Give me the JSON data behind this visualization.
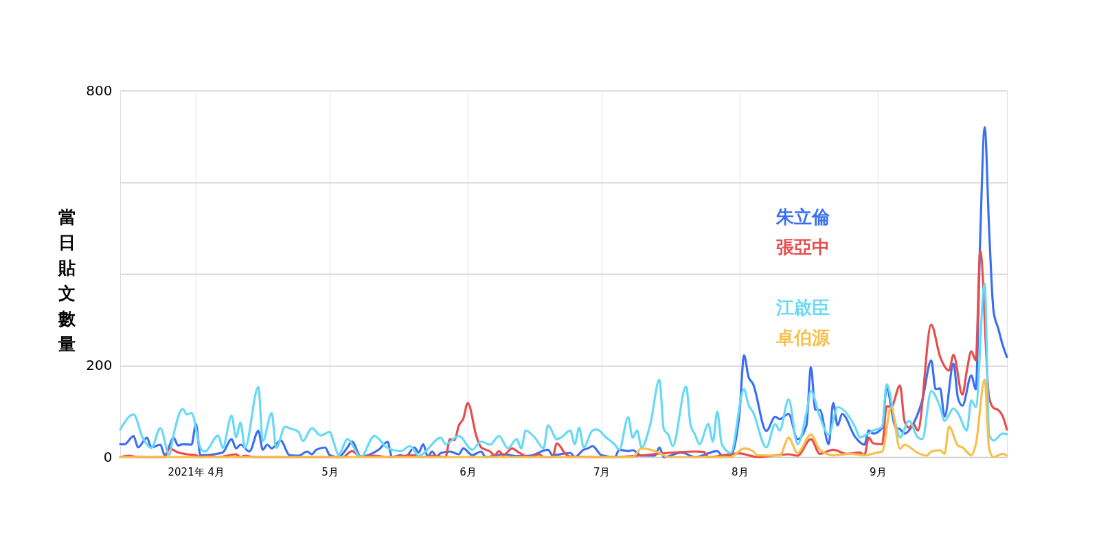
{
  "chart_data": {
    "type": "line",
    "ylabel": "當日貼文數量",
    "xlim": [
      "2021-03-15",
      "2021-09-30"
    ],
    "xticks": [
      {
        "value": "2021-04-01",
        "label": "2021年 4月"
      },
      {
        "value": "2021-05-01",
        "label": "5月"
      },
      {
        "value": "2021-06-01",
        "label": "6月"
      },
      {
        "value": "2021-07-01",
        "label": "7月"
      },
      {
        "value": "2021-08-01",
        "label": "8月"
      },
      {
        "value": "2021-09-01",
        "label": "9月"
      }
    ],
    "ylim": [
      0,
      800
    ],
    "yticks": [
      0,
      200,
      {
        "value": 400,
        "label": null
      },
      {
        "value": 600,
        "label": null
      },
      800
    ],
    "grid": true,
    "legend": "right",
    "series": [
      {
        "name": "朱立倫",
        "color": "#3b6ff2",
        "x": [
          "2021-03-15",
          "2021-03-16",
          "2021-03-18",
          "2021-03-19",
          "2021-03-21",
          "2021-03-22",
          "2021-03-24",
          "2021-03-25",
          "2021-03-27",
          "2021-03-28",
          "2021-03-29",
          "2021-03-31",
          "2021-04-01",
          "2021-04-02",
          "2021-04-05",
          "2021-04-07",
          "2021-04-09",
          "2021-04-10",
          "2021-04-11",
          "2021-04-13",
          "2021-04-15",
          "2021-04-16",
          "2021-04-17",
          "2021-04-18",
          "2021-04-20",
          "2021-04-22",
          "2021-04-24",
          "2021-04-26",
          "2021-04-27",
          "2021-04-28",
          "2021-04-30",
          "2021-05-01",
          "2021-05-03",
          "2021-05-05",
          "2021-05-06",
          "2021-05-08",
          "2021-05-12",
          "2021-05-14",
          "2021-05-15",
          "2021-05-17",
          "2021-05-18",
          "2021-05-20",
          "2021-05-21",
          "2021-05-22",
          "2021-05-23",
          "2021-05-24",
          "2021-05-25",
          "2021-05-26",
          "2021-05-28",
          "2021-05-30",
          "2021-05-31",
          "2021-06-02",
          "2021-06-04",
          "2021-06-05",
          "2021-06-09",
          "2021-06-12",
          "2021-06-15",
          "2021-06-19",
          "2021-06-20",
          "2021-06-24",
          "2021-06-25",
          "2021-06-27",
          "2021-06-28",
          "2021-06-29",
          "2021-07-01",
          "2021-07-04",
          "2021-07-05",
          "2021-07-07",
          "2021-07-08",
          "2021-07-10",
          "2021-07-13",
          "2021-07-14",
          "2021-07-15",
          "2021-07-19",
          "2021-07-22",
          "2021-07-27",
          "2021-07-28",
          "2021-07-30",
          "2021-08-01",
          "2021-08-02",
          "2021-08-03",
          "2021-08-04",
          "2021-08-07",
          "2021-08-09",
          "2021-08-10",
          "2021-08-12",
          "2021-08-14",
          "2021-08-16",
          "2021-08-17",
          "2021-08-18",
          "2021-08-19",
          "2021-08-21",
          "2021-08-22",
          "2021-08-23",
          "2021-08-24",
          "2021-08-27",
          "2021-08-29",
          "2021-08-30",
          "2021-08-31",
          "2021-09-02",
          "2021-09-03",
          "2021-09-05",
          "2021-09-06",
          "2021-09-07",
          "2021-09-09",
          "2021-09-11",
          "2021-09-13",
          "2021-09-14",
          "2021-09-15",
          "2021-09-16",
          "2021-09-18",
          "2021-09-19",
          "2021-09-20",
          "2021-09-22",
          "2021-09-23",
          "2021-09-24",
          "2021-09-25",
          "2021-09-26",
          "2021-09-27",
          "2021-09-28",
          "2021-09-29",
          "2021-09-30"
        ],
        "values": [
          28,
          28,
          46,
          21,
          42,
          21,
          27,
          4,
          42,
          25,
          28,
          27,
          72,
          4,
          6,
          10,
          39,
          19,
          27,
          12,
          57,
          16,
          27,
          19,
          36,
          4,
          3,
          12,
          6,
          16,
          21,
          4,
          0,
          21,
          34,
          1,
          16,
          33,
          0,
          4,
          0,
          21,
          10,
          28,
          1,
          12,
          1,
          9,
          12,
          6,
          19,
          4,
          12,
          0,
          6,
          2,
          3,
          16,
          4,
          9,
          0,
          16,
          19,
          24,
          4,
          0,
          16,
          13,
          15,
          3,
          3,
          21,
          0,
          10,
          0,
          13,
          4,
          4,
          99,
          222,
          175,
          160,
          57,
          88,
          83,
          94,
          39,
          69,
          196,
          103,
          103,
          28,
          118,
          69,
          94,
          43,
          27,
          58,
          51,
          64,
          151,
          64,
          61,
          51,
          73,
          124,
          211,
          148,
          150,
          88,
          204,
          129,
          112,
          178,
          148,
          480,
          720,
          496,
          318,
          282,
          246,
          218
        ]
      },
      {
        "name": "張亞中",
        "color": "#e84c4c",
        "x": [
          "2021-03-15",
          "2021-03-17",
          "2021-03-19",
          "2021-03-25",
          "2021-03-26",
          "2021-03-28",
          "2021-03-30",
          "2021-04-01",
          "2021-04-02",
          "2021-04-04",
          "2021-04-06",
          "2021-04-10",
          "2021-04-11",
          "2021-04-12",
          "2021-04-14",
          "2021-05-04",
          "2021-05-06",
          "2021-05-08",
          "2021-05-11",
          "2021-05-14",
          "2021-05-20",
          "2021-05-22",
          "2021-05-24",
          "2021-05-27",
          "2021-05-28",
          "2021-05-29",
          "2021-05-30",
          "2021-05-31",
          "2021-06-01",
          "2021-06-03",
          "2021-06-04",
          "2021-06-06",
          "2021-06-07",
          "2021-06-08",
          "2021-06-09",
          "2021-06-11",
          "2021-06-12",
          "2021-06-14",
          "2021-06-15",
          "2021-06-17",
          "2021-06-18",
          "2021-06-20",
          "2021-06-21",
          "2021-06-23",
          "2021-06-24",
          "2021-07-03",
          "2021-07-22",
          "2021-07-24",
          "2021-07-25",
          "2021-08-01",
          "2021-08-03",
          "2021-08-05",
          "2021-08-12",
          "2021-08-14",
          "2021-08-17",
          "2021-08-19",
          "2021-08-22",
          "2021-08-25",
          "2021-08-28",
          "2021-08-29",
          "2021-08-30",
          "2021-08-31",
          "2021-09-02",
          "2021-09-03",
          "2021-09-04",
          "2021-09-06",
          "2021-09-07",
          "2021-09-08",
          "2021-09-09",
          "2021-09-10",
          "2021-09-13",
          "2021-09-15",
          "2021-09-17",
          "2021-09-18",
          "2021-09-20",
          "2021-09-21",
          "2021-09-22",
          "2021-09-23",
          "2021-09-24",
          "2021-09-26",
          "2021-09-27",
          "2021-09-28",
          "2021-09-29",
          "2021-09-30"
        ],
        "values": [
          0,
          3,
          0,
          0,
          19,
          10,
          6,
          4,
          0,
          3,
          0,
          6,
          0,
          3,
          0,
          0,
          13,
          1,
          3,
          0,
          4,
          0,
          3,
          0,
          39,
          37,
          69,
          84,
          118,
          43,
          21,
          12,
          4,
          13,
          4,
          19,
          13,
          2,
          0,
          6,
          0,
          0,
          30,
          6,
          1,
          0,
          12,
          11,
          0,
          8,
          4,
          0,
          6,
          3,
          39,
          7,
          16,
          7,
          10,
          4,
          42,
          30,
          28,
          111,
          109,
          156,
          79,
          64,
          73,
          58,
          289,
          219,
          189,
          223,
          136,
          189,
          231,
          211,
          450,
          130,
          107,
          103,
          90,
          60
        ]
      },
      {
        "name": "江啟臣",
        "color": "#66d9f7",
        "x": [
          "2021-03-15",
          "2021-03-18",
          "2021-03-20",
          "2021-03-22",
          "2021-03-24",
          "2021-03-26",
          "2021-03-27",
          "2021-03-29",
          "2021-03-30",
          "2021-03-31",
          "2021-04-02",
          "2021-04-03",
          "2021-04-06",
          "2021-04-07",
          "2021-04-09",
          "2021-04-10",
          "2021-04-11",
          "2021-04-12",
          "2021-04-15",
          "2021-04-16",
          "2021-04-18",
          "2021-04-19",
          "2021-04-21",
          "2021-04-22",
          "2021-04-24",
          "2021-04-25",
          "2021-04-27",
          "2021-04-29",
          "2021-05-01",
          "2021-05-02",
          "2021-05-03",
          "2021-05-05",
          "2021-05-08",
          "2021-05-11",
          "2021-05-14",
          "2021-05-17",
          "2021-05-19",
          "2021-05-21",
          "2021-05-26",
          "2021-05-27",
          "2021-05-30",
          "2021-06-02",
          "2021-06-04",
          "2021-06-06",
          "2021-06-08",
          "2021-06-10",
          "2021-06-12",
          "2021-06-13",
          "2021-06-14",
          "2021-06-16",
          "2021-06-18",
          "2021-06-19",
          "2021-06-21",
          "2021-06-22",
          "2021-06-24",
          "2021-06-25",
          "2021-06-26",
          "2021-06-27",
          "2021-06-29",
          "2021-06-30",
          "2021-07-02",
          "2021-07-04",
          "2021-07-05",
          "2021-07-07",
          "2021-07-08",
          "2021-07-09",
          "2021-07-10",
          "2021-07-12",
          "2021-07-14",
          "2021-07-15",
          "2021-07-16",
          "2021-07-17",
          "2021-07-20",
          "2021-07-21",
          "2021-07-22",
          "2021-07-23",
          "2021-07-25",
          "2021-07-26",
          "2021-07-27",
          "2021-07-28",
          "2021-07-30",
          "2021-08-02",
          "2021-08-03",
          "2021-08-04",
          "2021-08-07",
          "2021-08-09",
          "2021-08-10",
          "2021-08-12",
          "2021-08-14",
          "2021-08-16",
          "2021-08-17",
          "2021-08-19",
          "2021-08-21",
          "2021-08-23",
          "2021-08-27",
          "2021-08-28",
          "2021-08-31",
          "2021-09-02",
          "2021-09-03",
          "2021-09-05",
          "2021-09-06",
          "2021-09-08",
          "2021-09-10",
          "2021-09-11",
          "2021-09-13",
          "2021-09-15",
          "2021-09-16",
          "2021-09-18",
          "2021-09-19",
          "2021-09-21",
          "2021-09-22",
          "2021-09-23",
          "2021-09-25",
          "2021-09-26",
          "2021-09-27",
          "2021-09-29",
          "2021-09-30"
        ],
        "values": [
          60,
          93,
          43,
          20,
          63,
          5,
          50,
          105,
          93,
          96,
          20,
          12,
          47,
          20,
          90,
          43,
          75,
          20,
          153,
          35,
          96,
          20,
          66,
          63,
          55,
          35,
          63,
          47,
          55,
          30,
          5,
          39,
          0,
          46,
          20,
          13,
          24,
          3,
          42,
          28,
          46,
          16,
          34,
          27,
          46,
          19,
          39,
          19,
          58,
          43,
          19,
          69,
          39,
          43,
          58,
          28,
          64,
          21,
          58,
          60,
          43,
          27,
          16,
          87,
          42,
          58,
          21,
          73,
          169,
          60,
          49,
          24,
          154,
          70,
          49,
          28,
          72,
          34,
          99,
          28,
          9,
          148,
          114,
          98,
          21,
          72,
          58,
          126,
          28,
          96,
          144,
          88,
          49,
          109,
          64,
          43,
          58,
          66,
          159,
          73,
          43,
          79,
          43,
          39,
          144,
          109,
          79,
          106,
          96,
          58,
          124,
          109,
          379,
          49,
          36,
          51,
          50
        ]
      },
      {
        "name": "卓伯源",
        "color": "#f7bf4a",
        "x": [
          "2021-03-15",
          "2021-07-08",
          "2021-07-10",
          "2021-07-12",
          "2021-07-14",
          "2021-07-16",
          "2021-07-30",
          "2021-08-02",
          "2021-08-04",
          "2021-08-05",
          "2021-08-10",
          "2021-08-12",
          "2021-08-14",
          "2021-08-17",
          "2021-08-19",
          "2021-08-22",
          "2021-08-26",
          "2021-08-29",
          "2021-09-01",
          "2021-09-02",
          "2021-09-04",
          "2021-09-06",
          "2021-09-07",
          "2021-09-10",
          "2021-09-12",
          "2021-09-13",
          "2021-09-15",
          "2021-09-16",
          "2021-09-17",
          "2021-09-19",
          "2021-09-20",
          "2021-09-22",
          "2021-09-23",
          "2021-09-25",
          "2021-09-26",
          "2021-09-27",
          "2021-09-29",
          "2021-09-30"
        ],
        "values": [
          0,
          0,
          19,
          16,
          9,
          0,
          0,
          19,
          13,
          4,
          3,
          42,
          9,
          49,
          16,
          4,
          7,
          4,
          10,
          12,
          109,
          18,
          27,
          9,
          3,
          12,
          15,
          7,
          66,
          25,
          21,
          4,
          27,
          169,
          18,
          0,
          7,
          3
        ]
      }
    ]
  }
}
